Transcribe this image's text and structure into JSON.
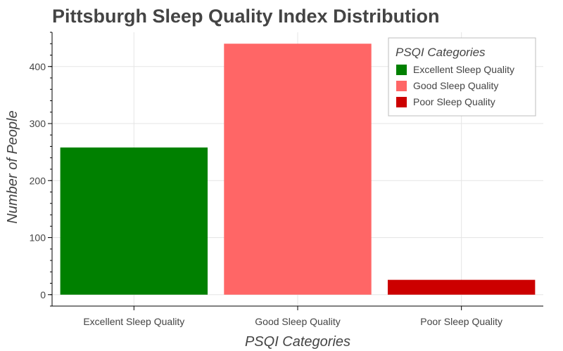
{
  "chart_data": {
    "type": "bar",
    "title": "Pittsburgh Sleep Quality Index Distribution",
    "xlabel": "PSQI Categories",
    "ylabel": "Number of People",
    "categories": [
      "Excellent Sleep Quality",
      "Good Sleep Quality",
      "Poor Sleep Quality"
    ],
    "values": [
      258,
      440,
      26
    ],
    "colors": [
      "#008000",
      "#ff6666",
      "#cc0000"
    ],
    "ylim": [
      -20,
      460
    ],
    "y_major_ticks": [
      0,
      100,
      200,
      300,
      400
    ],
    "grid": true,
    "legend": {
      "title": "PSQI Categories",
      "placement": "top-right",
      "entries": [
        "Excellent Sleep Quality",
        "Good Sleep Quality",
        "Poor Sleep Quality"
      ]
    },
    "text_color": "#444444",
    "grid_color": "#e5e5e5"
  }
}
